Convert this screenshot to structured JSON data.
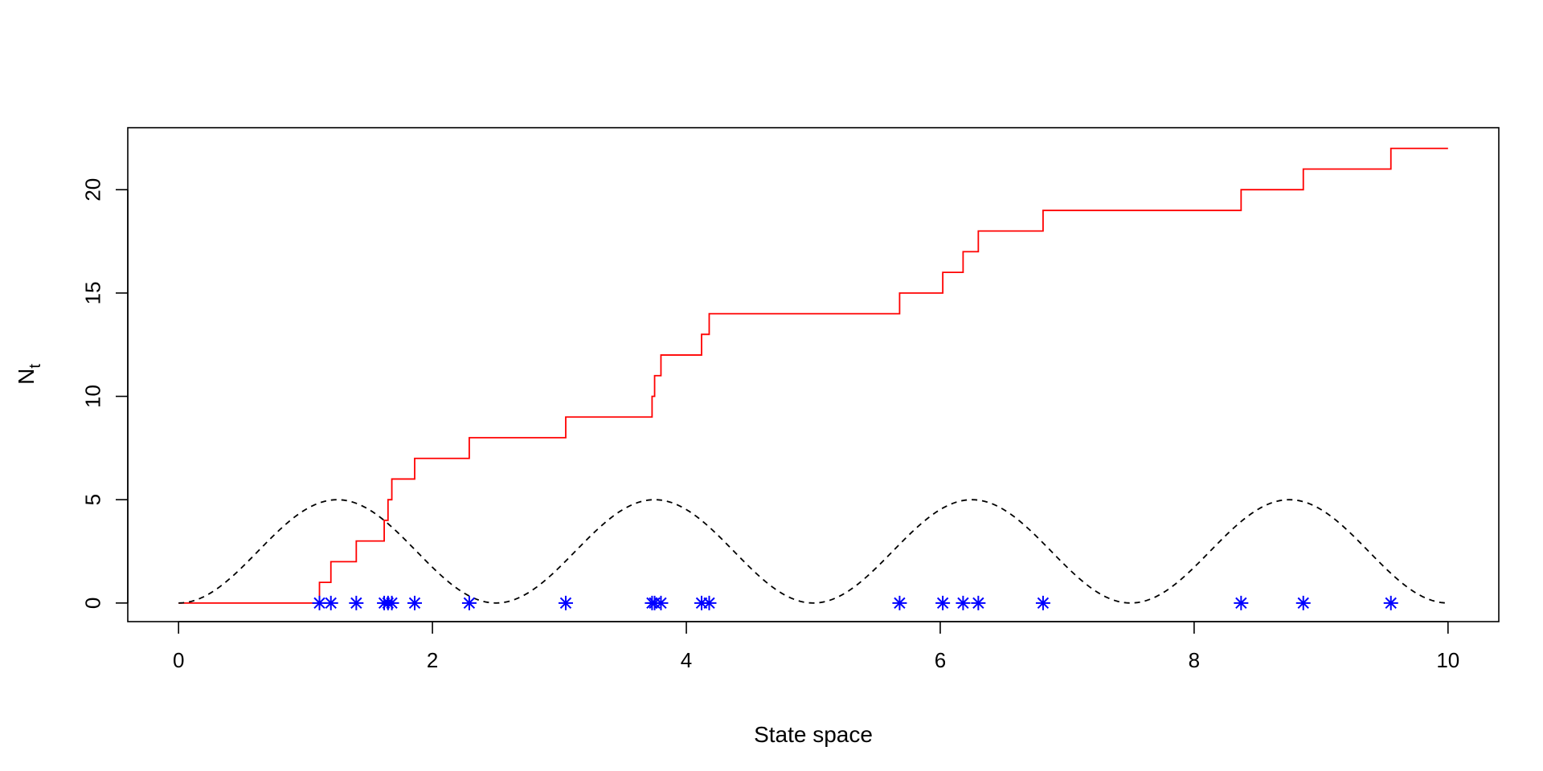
{
  "chart_data": {
    "type": "line",
    "title": "",
    "xlabel": "State space",
    "ylabel": {
      "main": "N",
      "sub": "t"
    },
    "xlim": [
      -0.4,
      10.4
    ],
    "ylim": [
      -0.9,
      23
    ],
    "x_ticks": [
      0,
      2,
      4,
      6,
      8,
      10
    ],
    "y_ticks": [
      0,
      5,
      10,
      15,
      20
    ],
    "grid": false,
    "legend": "none",
    "colors": {
      "counting": "#ff0000",
      "intensity": "#000000",
      "events": "#0000ff"
    },
    "series": [
      {
        "style": "step",
        "color": "#ff0000",
        "x_start": 0,
        "x_end": 10,
        "jumps": [
          1.11,
          1.2,
          1.4,
          1.62,
          1.65,
          1.68,
          1.86,
          2.29,
          3.05,
          3.73,
          3.75,
          3.8,
          4.12,
          4.18,
          5.68,
          6.02,
          6.18,
          6.3,
          6.81,
          8.37,
          8.86,
          9.55
        ]
      },
      {
        "style": "dashed",
        "color": "#000000",
        "function": "amplitude * sin(pi * x / 2.5)^2",
        "amplitude": 5,
        "x_start": 0,
        "x_end": 10
      },
      {
        "style": "points",
        "marker": "asterisk",
        "color": "#0000ff",
        "x": [
          1.11,
          1.2,
          1.4,
          1.62,
          1.65,
          1.68,
          1.86,
          2.29,
          3.05,
          3.73,
          3.75,
          3.8,
          4.12,
          4.18,
          5.68,
          6.02,
          6.18,
          6.3,
          6.81,
          8.37,
          8.86,
          9.55
        ],
        "y": 0
      }
    ]
  }
}
